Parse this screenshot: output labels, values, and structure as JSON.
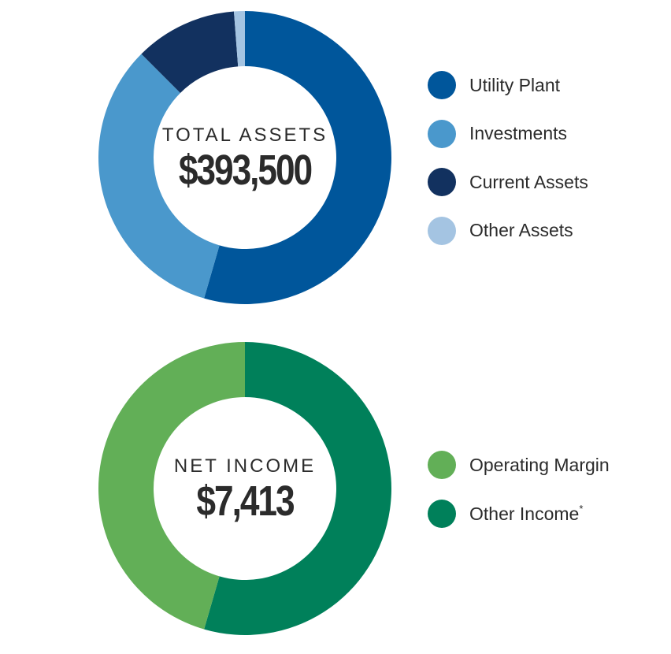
{
  "chart_data": [
    {
      "type": "pie",
      "donut": true,
      "title": "TOTAL ASSETS",
      "total_label": "$393,500",
      "series": [
        {
          "name": "Utility Plant",
          "value": 54.5,
          "color": "#00569b"
        },
        {
          "name": "Investments",
          "value": 33.0,
          "color": "#4a98cc"
        },
        {
          "name": "Current Assets",
          "value": 11.3,
          "color": "#12315f"
        },
        {
          "name": "Other Assets",
          "value": 1.2,
          "color": "#a4c4e2"
        }
      ],
      "legend_position": "right"
    },
    {
      "type": "pie",
      "donut": true,
      "title": "NET INCOME",
      "total_label": "$7,413",
      "series": [
        {
          "name": "Other Income",
          "marker": "*",
          "value": 54.5,
          "color": "#00805a"
        },
        {
          "name": "Operating Margin",
          "value": 45.5,
          "color": "#62af57"
        }
      ],
      "legend_order": [
        "Operating Margin",
        "Other Income"
      ],
      "legend_position": "right"
    }
  ]
}
